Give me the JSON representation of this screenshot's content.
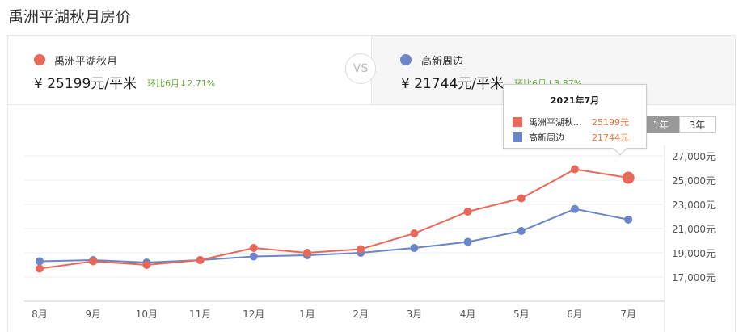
{
  "page_title": "禹洲平湖秋月房价",
  "compare": {
    "left": {
      "name": "禹洲平湖秋月",
      "color": "#e8695a",
      "price": "¥ 25199元/平米",
      "change": "环比6月↓2.71%"
    },
    "vs_label": "VS",
    "right": {
      "name": "高新周边",
      "color": "#6a86c8",
      "price": "¥ 21744元/平米",
      "change": "环比6月↓3.87%"
    }
  },
  "range_buttons": [
    {
      "label": "1年",
      "active": true
    },
    {
      "label": "3年",
      "active": false
    }
  ],
  "tooltip": {
    "title": "2021年7月",
    "rows": [
      {
        "label": "禹洲平湖秋...",
        "value": "25199元",
        "color": "#e8695a"
      },
      {
        "label": "高新周边",
        "value": "21744元",
        "color": "#6a86c8"
      }
    ]
  },
  "chart_data": {
    "type": "line",
    "title": "禹洲平湖秋月房价",
    "categories": [
      "8月",
      "9月",
      "10月",
      "11月",
      "12月",
      "1月",
      "2月",
      "3月",
      "4月",
      "5月",
      "6月",
      "7月"
    ],
    "series": [
      {
        "name": "禹洲平湖秋月",
        "color": "#e8695a",
        "values": [
          17700,
          18300,
          18000,
          18400,
          19400,
          19000,
          19300,
          20600,
          22400,
          23500,
          25901,
          25199
        ]
      },
      {
        "name": "高新周边",
        "color": "#6a86c8",
        "values": [
          18300,
          18400,
          18200,
          18400,
          18700,
          18800,
          19000,
          19400,
          19900,
          20800,
          22620,
          21744
        ]
      }
    ],
    "y_ticks": [
      "27,000元",
      "25,000元",
      "23,000元",
      "21,000元",
      "19,000元",
      "17,000元"
    ],
    "y_tick_values": [
      27000,
      25000,
      23000,
      21000,
      19000,
      17000
    ],
    "xlabel": "",
    "ylabel": "",
    "ylim": [
      15000,
      28000
    ],
    "grid": true,
    "y_axis_position": "right",
    "legend_position": "top"
  }
}
